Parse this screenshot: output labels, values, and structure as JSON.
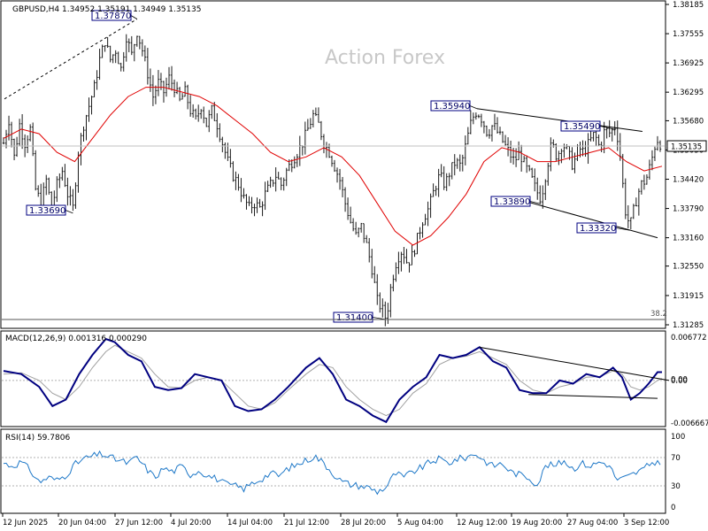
{
  "header": {
    "symbol_line": "GBPUSD,H4  1.34952 1.35191 1.34949 1.35135",
    "watermark": "Action Forex"
  },
  "colors": {
    "background": "#ffffff",
    "price_bars": "#1a1a1a",
    "moving_average": "#e00000",
    "macd_line": "#000080",
    "signal_line": "#a0a0a0",
    "rsi_line": "#1e78c8",
    "label_border": "#000080"
  },
  "chart_data": [
    {
      "type": "ohlc",
      "panel": "price",
      "title": "GBPUSD,H4  1.34952 1.35191 1.34949 1.35135",
      "y_ticks": [
        "1.38185",
        "1.37555",
        "1.36925",
        "1.36295",
        "1.35680",
        "1.35050",
        "1.34420",
        "1.33790",
        "1.33160",
        "1.32550",
        "1.31915",
        "1.31285"
      ],
      "ylim": [
        1.31285,
        1.38185
      ],
      "current_price": "1.35135",
      "fib_label": "38.2",
      "annotations": [
        {
          "text": "1.37870",
          "value": 1.3787
        },
        {
          "text": "1.33690",
          "value": 1.3369
        },
        {
          "text": "1.35940",
          "value": 1.3594
        },
        {
          "text": "1.35490",
          "value": 1.3549
        },
        {
          "text": "1.33890",
          "value": 1.3389
        },
        {
          "text": "1.33320",
          "value": 1.3332
        },
        {
          "text": "1.31400",
          "value": 1.314
        }
      ],
      "close_path": [
        [
          0,
          1.352
        ],
        [
          6,
          1.357
        ],
        [
          12,
          1.349
        ],
        [
          18,
          1.356
        ],
        [
          24,
          1.352
        ],
        [
          30,
          1.355
        ],
        [
          36,
          1.342
        ],
        [
          42,
          1.339
        ],
        [
          48,
          1.344
        ],
        [
          54,
          1.338
        ],
        [
          60,
          1.343
        ],
        [
          66,
          1.346
        ],
        [
          72,
          1.341
        ],
        [
          78,
          1.338
        ],
        [
          84,
          1.35
        ],
        [
          90,
          1.356
        ],
        [
          96,
          1.36
        ],
        [
          102,
          1.364
        ],
        [
          108,
          1.37
        ],
        [
          114,
          1.374
        ],
        [
          120,
          1.37
        ],
        [
          126,
          1.372
        ],
        [
          132,
          1.368
        ],
        [
          138,
          1.375
        ],
        [
          144,
          1.371
        ],
        [
          150,
          1.376
        ],
        [
          156,
          1.372
        ],
        [
          162,
          1.367
        ],
        [
          168,
          1.362
        ],
        [
          174,
          1.365
        ],
        [
          180,
          1.363
        ],
        [
          186,
          1.366
        ],
        [
          192,
          1.364
        ],
        [
          198,
          1.361
        ],
        [
          204,
          1.363
        ],
        [
          210,
          1.359
        ],
        [
          216,
          1.357
        ],
        [
          222,
          1.36
        ],
        [
          228,
          1.356
        ],
        [
          234,
          1.359
        ],
        [
          240,
          1.356
        ],
        [
          246,
          1.352
        ],
        [
          252,
          1.348
        ],
        [
          258,
          1.345
        ],
        [
          264,
          1.343
        ],
        [
          270,
          1.34
        ],
        [
          276,
          1.338
        ],
        [
          282,
          1.339
        ],
        [
          288,
          1.338
        ],
        [
          294,
          1.341
        ],
        [
          300,
          1.343
        ],
        [
          306,
          1.345
        ],
        [
          312,
          1.343
        ],
        [
          318,
          1.346
        ],
        [
          324,
          1.348
        ],
        [
          330,
          1.35
        ],
        [
          336,
          1.352
        ],
        [
          342,
          1.355
        ],
        [
          348,
          1.358
        ],
        [
          354,
          1.356
        ],
        [
          360,
          1.352
        ],
        [
          366,
          1.35
        ],
        [
          372,
          1.347
        ],
        [
          378,
          1.344
        ],
        [
          384,
          1.339
        ],
        [
          390,
          1.335
        ],
        [
          396,
          1.332
        ],
        [
          402,
          1.334
        ],
        [
          408,
          1.33
        ],
        [
          414,
          1.325
        ],
        [
          420,
          1.318
        ],
        [
          426,
          1.316
        ],
        [
          430,
          1.314
        ],
        [
          436,
          1.322
        ],
        [
          442,
          1.327
        ],
        [
          448,
          1.329
        ],
        [
          454,
          1.326
        ],
        [
          460,
          1.328
        ],
        [
          466,
          1.332
        ],
        [
          472,
          1.336
        ],
        [
          478,
          1.338
        ],
        [
          484,
          1.342
        ],
        [
          490,
          1.345
        ],
        [
          496,
          1.343
        ],
        [
          502,
          1.346
        ],
        [
          508,
          1.348
        ],
        [
          514,
          1.347
        ],
        [
          520,
          1.352
        ],
        [
          526,
          1.357
        ],
        [
          532,
          1.359
        ],
        [
          538,
          1.357
        ],
        [
          544,
          1.354
        ],
        [
          550,
          1.356
        ],
        [
          556,
          1.354
        ],
        [
          562,
          1.352
        ],
        [
          568,
          1.35
        ],
        [
          574,
          1.348
        ],
        [
          580,
          1.35
        ],
        [
          586,
          1.347
        ],
        [
          592,
          1.345
        ],
        [
          598,
          1.342
        ],
        [
          604,
          1.34
        ],
        [
          610,
          1.346
        ],
        [
          616,
          1.352
        ],
        [
          622,
          1.349
        ],
        [
          628,
          1.352
        ],
        [
          634,
          1.35
        ],
        [
          640,
          1.347
        ],
        [
          646,
          1.351
        ],
        [
          652,
          1.35
        ],
        [
          658,
          1.352
        ],
        [
          664,
          1.354
        ],
        [
          670,
          1.351
        ],
        [
          676,
          1.355
        ],
        [
          682,
          1.354
        ],
        [
          688,
          1.356
        ],
        [
          694,
          1.348
        ],
        [
          698,
          1.338
        ],
        [
          704,
          1.334
        ],
        [
          710,
          1.339
        ],
        [
          716,
          1.343
        ],
        [
          722,
          1.344
        ],
        [
          728,
          1.348
        ],
        [
          734,
          1.353
        ],
        [
          740,
          1.3513
        ]
      ],
      "ma_path": [
        [
          0,
          1.353
        ],
        [
          20,
          1.355
        ],
        [
          40,
          1.354
        ],
        [
          60,
          1.35
        ],
        [
          80,
          1.348
        ],
        [
          100,
          1.353
        ],
        [
          120,
          1.358
        ],
        [
          140,
          1.362
        ],
        [
          160,
          1.364
        ],
        [
          180,
          1.364
        ],
        [
          200,
          1.363
        ],
        [
          220,
          1.362
        ],
        [
          240,
          1.36
        ],
        [
          260,
          1.357
        ],
        [
          280,
          1.354
        ],
        [
          300,
          1.35
        ],
        [
          320,
          1.348
        ],
        [
          340,
          1.349
        ],
        [
          360,
          1.351
        ],
        [
          380,
          1.349
        ],
        [
          400,
          1.345
        ],
        [
          420,
          1.339
        ],
        [
          440,
          1.333
        ],
        [
          460,
          1.33
        ],
        [
          480,
          1.332
        ],
        [
          500,
          1.336
        ],
        [
          520,
          1.341
        ],
        [
          540,
          1.348
        ],
        [
          560,
          1.351
        ],
        [
          580,
          1.35
        ],
        [
          600,
          1.348
        ],
        [
          620,
          1.348
        ],
        [
          640,
          1.349
        ],
        [
          660,
          1.35
        ],
        [
          680,
          1.351
        ],
        [
          700,
          1.348
        ],
        [
          720,
          1.346
        ],
        [
          740,
          1.347
        ]
      ]
    },
    {
      "type": "line",
      "panel": "macd",
      "title": "MACD(12,26,9) 0.001316 0.000290",
      "y_ticks": [
        "0.006772",
        "0.00",
        "0.00",
        "-0.006667"
      ],
      "ylim": [
        -0.006667,
        0.006772
      ],
      "macd": [
        [
          0,
          0.0015
        ],
        [
          20,
          0.001
        ],
        [
          40,
          -0.001
        ],
        [
          55,
          -0.004
        ],
        [
          70,
          -0.003
        ],
        [
          85,
          0.001
        ],
        [
          100,
          0.004
        ],
        [
          115,
          0.0065
        ],
        [
          125,
          0.006
        ],
        [
          140,
          0.004
        ],
        [
          155,
          0.003
        ],
        [
          170,
          -0.001
        ],
        [
          185,
          -0.0015
        ],
        [
          200,
          -0.0012
        ],
        [
          215,
          0.001
        ],
        [
          230,
          0.0005
        ],
        [
          245,
          0.0
        ],
        [
          260,
          -0.004
        ],
        [
          275,
          -0.0048
        ],
        [
          290,
          -0.0045
        ],
        [
          305,
          -0.003
        ],
        [
          320,
          -0.001
        ],
        [
          340,
          0.002
        ],
        [
          355,
          0.0035
        ],
        [
          370,
          0.001
        ],
        [
          385,
          -0.003
        ],
        [
          400,
          -0.004
        ],
        [
          415,
          -0.0055
        ],
        [
          430,
          -0.0065
        ],
        [
          445,
          -0.003
        ],
        [
          460,
          -0.001
        ],
        [
          475,
          0.0005
        ],
        [
          490,
          0.004
        ],
        [
          505,
          0.0035
        ],
        [
          520,
          0.004
        ],
        [
          535,
          0.0052
        ],
        [
          550,
          0.003
        ],
        [
          565,
          0.002
        ],
        [
          580,
          -0.0015
        ],
        [
          595,
          -0.002
        ],
        [
          610,
          -0.002
        ],
        [
          625,
          0.0
        ],
        [
          640,
          -0.0005
        ],
        [
          655,
          0.001
        ],
        [
          670,
          0.0005
        ],
        [
          685,
          0.002
        ],
        [
          695,
          0.0005
        ],
        [
          705,
          -0.003
        ],
        [
          715,
          -0.002
        ],
        [
          725,
          -0.0005
        ],
        [
          735,
          0.0013
        ],
        [
          740,
          0.0013
        ]
      ],
      "signal": [
        [
          0,
          0.001
        ],
        [
          20,
          0.0012
        ],
        [
          40,
          0.0
        ],
        [
          55,
          -0.002
        ],
        [
          70,
          -0.003
        ],
        [
          85,
          -0.001
        ],
        [
          100,
          0.002
        ],
        [
          115,
          0.0045
        ],
        [
          125,
          0.0055
        ],
        [
          140,
          0.0045
        ],
        [
          155,
          0.0035
        ],
        [
          170,
          0.001
        ],
        [
          185,
          -0.001
        ],
        [
          200,
          -0.0012
        ],
        [
          215,
          0.0
        ],
        [
          230,
          0.0005
        ],
        [
          245,
          0.0
        ],
        [
          260,
          -0.002
        ],
        [
          275,
          -0.004
        ],
        [
          290,
          -0.0045
        ],
        [
          305,
          -0.0035
        ],
        [
          320,
          -0.0015
        ],
        [
          340,
          0.001
        ],
        [
          355,
          0.0025
        ],
        [
          370,
          0.002
        ],
        [
          385,
          -0.001
        ],
        [
          400,
          -0.003
        ],
        [
          415,
          -0.0045
        ],
        [
          430,
          -0.0055
        ],
        [
          445,
          -0.0045
        ],
        [
          460,
          -0.002
        ],
        [
          475,
          -0.0005
        ],
        [
          490,
          0.0025
        ],
        [
          505,
          0.0035
        ],
        [
          520,
          0.0038
        ],
        [
          535,
          0.0045
        ],
        [
          550,
          0.0035
        ],
        [
          565,
          0.0025
        ],
        [
          580,
          0.0
        ],
        [
          595,
          -0.0015
        ],
        [
          610,
          -0.002
        ],
        [
          625,
          -0.001
        ],
        [
          640,
          -0.0005
        ],
        [
          655,
          0.0005
        ],
        [
          670,
          0.0006
        ],
        [
          685,
          0.0015
        ],
        [
          695,
          0.001
        ],
        [
          705,
          -0.001
        ],
        [
          715,
          -0.0015
        ],
        [
          725,
          -0.001
        ],
        [
          735,
          0.0
        ],
        [
          740,
          0.0003
        ]
      ]
    },
    {
      "type": "line",
      "panel": "rsi",
      "title": "RSI(14) 59.7806",
      "y_ticks": [
        "100",
        "70",
        "30",
        "0"
      ],
      "ylim": [
        0,
        100
      ],
      "levels": [
        70,
        30
      ],
      "rsi": [
        [
          0,
          62
        ],
        [
          10,
          58
        ],
        [
          20,
          64
        ],
        [
          30,
          52
        ],
        [
          40,
          35
        ],
        [
          50,
          42
        ],
        [
          60,
          38
        ],
        [
          70,
          45
        ],
        [
          80,
          60
        ],
        [
          90,
          68
        ],
        [
          100,
          72
        ],
        [
          110,
          75
        ],
        [
          120,
          70
        ],
        [
          130,
          66
        ],
        [
          140,
          62
        ],
        [
          150,
          70
        ],
        [
          160,
          55
        ],
        [
          170,
          42
        ],
        [
          180,
          55
        ],
        [
          190,
          50
        ],
        [
          200,
          58
        ],
        [
          210,
          46
        ],
        [
          220,
          52
        ],
        [
          230,
          44
        ],
        [
          240,
          40
        ],
        [
          250,
          32
        ],
        [
          260,
          30
        ],
        [
          270,
          26
        ],
        [
          280,
          34
        ],
        [
          290,
          40
        ],
        [
          300,
          48
        ],
        [
          310,
          44
        ],
        [
          320,
          55
        ],
        [
          330,
          60
        ],
        [
          340,
          66
        ],
        [
          350,
          72
        ],
        [
          360,
          62
        ],
        [
          370,
          48
        ],
        [
          380,
          36
        ],
        [
          390,
          32
        ],
        [
          400,
          30
        ],
        [
          410,
          28
        ],
        [
          420,
          22
        ],
        [
          430,
          28
        ],
        [
          440,
          48
        ],
        [
          450,
          42
        ],
        [
          460,
          50
        ],
        [
          470,
          56
        ],
        [
          480,
          64
        ],
        [
          490,
          68
        ],
        [
          500,
          62
        ],
        [
          510,
          68
        ],
        [
          520,
          70
        ],
        [
          530,
          76
        ],
        [
          540,
          66
        ],
        [
          550,
          58
        ],
        [
          560,
          62
        ],
        [
          570,
          50
        ],
        [
          580,
          46
        ],
        [
          590,
          42
        ],
        [
          600,
          32
        ],
        [
          610,
          60
        ],
        [
          620,
          58
        ],
        [
          630,
          66
        ],
        [
          640,
          54
        ],
        [
          650,
          62
        ],
        [
          660,
          58
        ],
        [
          670,
          64
        ],
        [
          680,
          60
        ],
        [
          690,
          38
        ],
        [
          700,
          42
        ],
        [
          710,
          48
        ],
        [
          720,
          54
        ],
        [
          730,
          64
        ],
        [
          740,
          59.78
        ]
      ]
    }
  ],
  "x_axis": {
    "labels": [
      "12 Jun 2025",
      "20 Jun 04:00",
      "27 Jun 12:00",
      "4 Jul 20:00",
      "14 Jul 04:00",
      "21 Jul 12:00",
      "28 Jul 20:00",
      "5 Aug 04:00",
      "12 Aug 12:00",
      "19 Aug 20:00",
      "27 Aug 04:00",
      "3 Sep 12:00"
    ]
  }
}
